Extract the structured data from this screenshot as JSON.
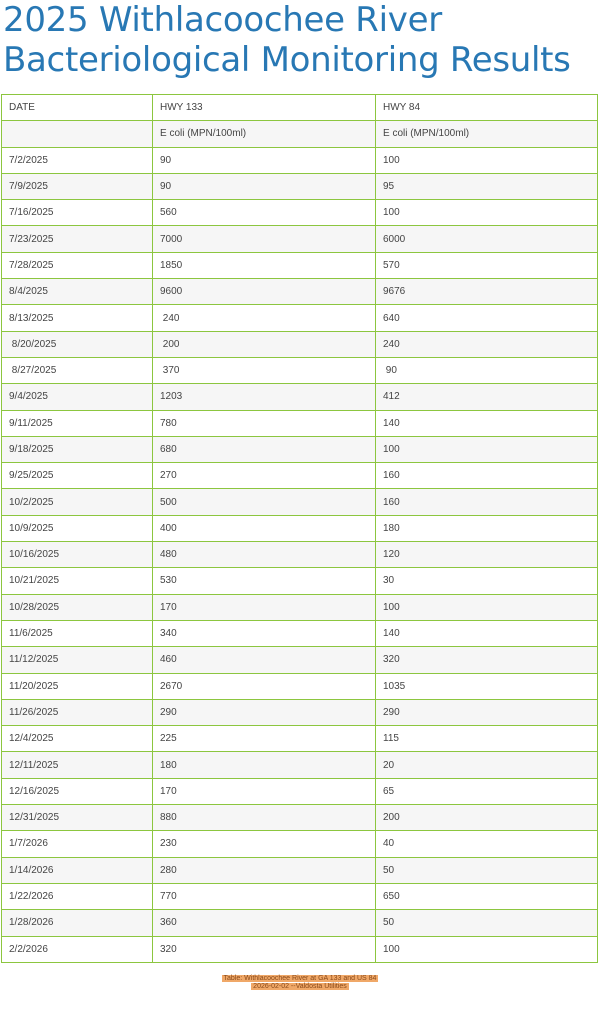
{
  "title": "2025 Withlacoochee River Bacteriological Monitoring Results",
  "table": {
    "headers": [
      "DATE",
      "HWY 133",
      "HWY 84"
    ],
    "units": [
      "",
      "E coli (MPN/100ml)",
      "E coli (MPN/100ml)"
    ],
    "rows": [
      [
        "7/2/2025",
        "90",
        "100"
      ],
      [
        "7/9/2025",
        "90",
        "95"
      ],
      [
        "7/16/2025",
        "560",
        "100"
      ],
      [
        "7/23/2025",
        "7000",
        "6000"
      ],
      [
        "7/28/2025",
        "1850",
        "570"
      ],
      [
        "8/4/2025",
        "9600",
        "9676"
      ],
      [
        "8/13/2025",
        " 240",
        "640"
      ],
      [
        " 8/20/2025",
        " 200",
        "240"
      ],
      [
        " 8/27/2025",
        " 370",
        " 90"
      ],
      [
        "9/4/2025",
        "1203",
        "412"
      ],
      [
        "9/11/2025",
        "780",
        "140"
      ],
      [
        "9/18/2025",
        "680",
        "100"
      ],
      [
        "9/25/2025",
        "270",
        "160"
      ],
      [
        "10/2/2025",
        "500",
        "160"
      ],
      [
        "10/9/2025",
        "400",
        "180"
      ],
      [
        "10/16/2025",
        "480",
        "120"
      ],
      [
        "10/21/2025",
        "530",
        "30"
      ],
      [
        "10/28/2025",
        "170",
        "100"
      ],
      [
        "11/6/2025",
        "340",
        "140"
      ],
      [
        "11/12/2025",
        "460",
        "320"
      ],
      [
        "11/20/2025",
        "2670",
        "1035"
      ],
      [
        "11/26/2025",
        "290",
        "290"
      ],
      [
        "12/4/2025",
        "225",
        "115"
      ],
      [
        "12/11/2025",
        "180",
        "20"
      ],
      [
        "12/16/2025",
        "170",
        "65"
      ],
      [
        "12/31/2025",
        "880",
        "200"
      ],
      [
        "1/7/2026",
        "230",
        "40"
      ],
      [
        "1/14/2026",
        "280",
        "50"
      ],
      [
        "1/22/2026",
        "770",
        "650"
      ],
      [
        "1/28/2026",
        "360",
        "50"
      ],
      [
        "2/2/2026",
        "320",
        "100"
      ]
    ]
  },
  "caption": {
    "line1": "Table: Withlacoochee River at GA 133 and US 84",
    "line2": "2026-02-02 --Valdosta Utilities"
  },
  "colors": {
    "title": "#2878b4",
    "border": "#8cc63f",
    "caption_bg": "#f0a868"
  }
}
